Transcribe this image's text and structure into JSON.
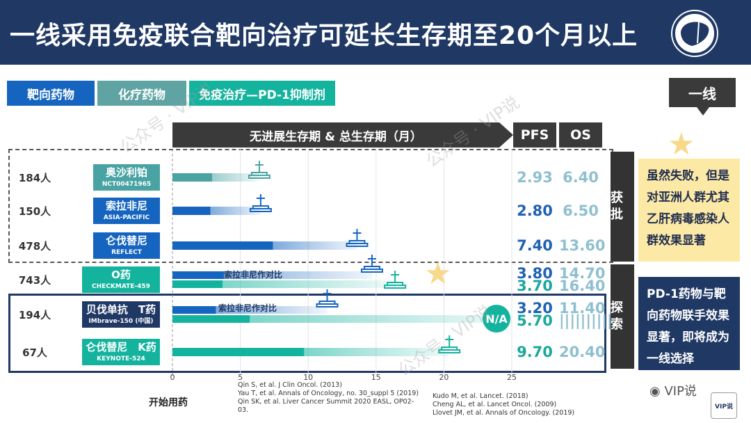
{
  "title": "一线采用免疫联合靶向治疗可延长生存期至20个月以上",
  "legend": [
    {
      "label": "靶向药物",
      "color": "#1565c0"
    },
    {
      "label": "化疗药物",
      "color": "#5fa3a3"
    },
    {
      "label": "免疫治疗—PD-1抑制剂",
      "color": "#14b39e"
    }
  ],
  "first_line_tag": "一线",
  "colors": {
    "pfs": "#1f61b5",
    "os": "#8fc0cf",
    "teal_text": "#1aa79c"
  },
  "chart_data": {
    "type": "bar",
    "banner": "无进展生存期 & 总生存期（月）",
    "column_headers": {
      "pfs": "PFS",
      "os": "OS"
    },
    "axis": {
      "min": 0,
      "max": 25,
      "ticks": [
        0,
        5,
        10,
        15,
        20,
        25
      ],
      "label": "开始用药",
      "grid": true
    },
    "rows": [
      {
        "pop": "184人",
        "drug": "奥沙利铂",
        "trial": "NCT00471965",
        "drug_color": "#4aa3a3",
        "pfs": 2.93,
        "os": 6.4,
        "pfs_text": "2.93",
        "os_text": "6.40",
        "lines": [
          {
            "pfs": 2.93,
            "os": 6.4,
            "color": "#4aa3a3"
          }
        ]
      },
      {
        "pop": "150人",
        "drug": "索拉非尼",
        "trial": "ASIA-PACIFIC",
        "drug_color": "#1565c0",
        "pfs": 2.8,
        "os": 6.5,
        "pfs_text": "2.80",
        "os_text": "6.50",
        "lines": [
          {
            "pfs": 2.8,
            "os": 6.5,
            "color": "#1565c0"
          }
        ]
      },
      {
        "pop": "478人",
        "drug": "仑伐替尼",
        "trial": "REFLECT",
        "drug_color": "#1565c0",
        "pfs": 7.4,
        "os": 13.6,
        "pfs_text": "7.40",
        "os_text": "13.60",
        "lines": [
          {
            "pfs": 7.4,
            "os": 13.6,
            "color": "#1565c0"
          }
        ]
      },
      {
        "pop": "743人",
        "drug": "O药",
        "trial": "CHECKMATE-459",
        "drug_color": "#14b39e",
        "pfs_text": "3.80",
        "os_text": "14.70",
        "pfs2_text": "3.70",
        "os2_text": "16.40",
        "comparator": "索拉非尼作对比",
        "lines": [
          {
            "pfs": 3.8,
            "os": 14.7,
            "color": "#1565c0"
          },
          {
            "pfs": 3.7,
            "os": 16.4,
            "color": "#14b39e"
          }
        ]
      },
      {
        "pop": "194人",
        "drug": "贝伐单抗　T药",
        "trial": "IMbrave-150 (中国)",
        "drug_color": "#1f3864",
        "pfs_text": "3.20",
        "os_text": "11.40",
        "pfs2_text": "5.70",
        "os2_text": "||||||||||",
        "comparator": "索拉非尼作对比",
        "na": "N/A",
        "lines": [
          {
            "pfs": 3.2,
            "os": 11.4,
            "color": "#1565c0"
          },
          {
            "pfs": 5.7,
            "os": 25,
            "color": "#14b39e"
          }
        ]
      },
      {
        "pop": "67人",
        "drug": "仑伐替尼　K药",
        "trial": "KEYNOTE-524",
        "drug_color": "#14b39e",
        "pfs_text": "9.70",
        "os_text": "20.40",
        "lines": [
          {
            "pfs": 9.7,
            "os": 20.4,
            "color": "#14b39e",
            "gradient_start": "#1565c0"
          }
        ]
      }
    ]
  },
  "side_tags": {
    "approved": "获批",
    "explore": "探索"
  },
  "notes": {
    "approved": "虽然失败，但是对亚洲人群尤其乙肝病毒感染人群效果显著",
    "explore": "PD-1药物与靶向药物联手效果显著，即将成为一线选择"
  },
  "references": {
    "left": "Qin S, et al. J Clin Oncol. (2013)\nYau T, et al. Annals of Oncology, no. 30_suppl 5 (2019)\nQin SK, et al. Liver Cancer Summit 2020 EASL, OP02-03.",
    "right": "Kudo M, et al. Lancet. (2018)\nCheng AL, et al. Lancet Oncol. (2009)\nLlovet JM, et al. Annals of Oncology. (2019)"
  },
  "watermark": "公众号 · VIP说",
  "footer_brand": "VIP说",
  "logo_text": "VIP说"
}
